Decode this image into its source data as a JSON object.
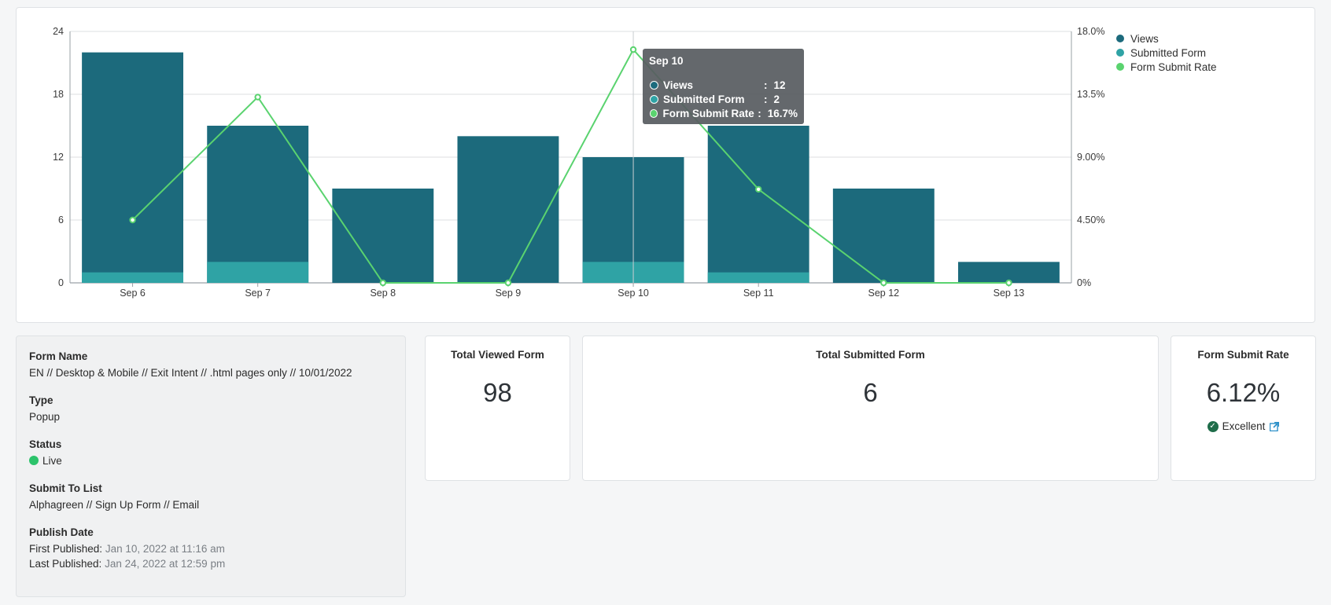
{
  "chart_data": {
    "type": "bar",
    "categories": [
      "Sep 6",
      "Sep 7",
      "Sep 8",
      "Sep 9",
      "Sep 10",
      "Sep 11",
      "Sep 12",
      "Sep 13"
    ],
    "series": [
      {
        "name": "Views",
        "axis": "left",
        "type": "bar",
        "color": "#1c6a7c",
        "values": [
          22,
          15,
          9,
          14,
          12,
          15,
          9,
          2
        ]
      },
      {
        "name": "Submitted Form",
        "axis": "left",
        "type": "bar",
        "color": "#2fa3a5",
        "values": [
          1,
          2,
          0,
          0,
          2,
          1,
          0,
          0
        ]
      },
      {
        "name": "Form Submit Rate",
        "axis": "right",
        "type": "line",
        "color": "#5ad36f",
        "values": [
          4.5,
          13.3,
          0,
          0,
          16.7,
          6.7,
          0,
          0
        ]
      }
    ],
    "ylim_left": [
      0,
      24
    ],
    "yticks_left": [
      "0",
      "6",
      "12",
      "18",
      "24"
    ],
    "ylim_right": [
      0,
      18
    ],
    "yticks_right": [
      "0%",
      "4.50%",
      "9.00%",
      "13.5%",
      "18.0%"
    ],
    "grid": true,
    "legend_position": "top-right",
    "tooltip": {
      "title": "Sep 10",
      "rows": [
        {
          "label": "Views",
          "value": "12",
          "color": "#1c6a7c"
        },
        {
          "label": "Submitted Form",
          "value": "2",
          "color": "#2fa3a5"
        },
        {
          "label": "Form Submit Rate",
          "value": "16.7%",
          "color": "#5ad36f"
        }
      ]
    }
  },
  "info": {
    "form_name_label": "Form Name",
    "form_name": "EN // Desktop & Mobile // Exit Intent // .html pages only // 10/01/2022",
    "type_label": "Type",
    "type": "Popup",
    "status_label": "Status",
    "status": "Live",
    "status_color": "#2cc36b",
    "list_label": "Submit To List",
    "list": "Alphagreen // Sign Up Form // Email",
    "publish_label": "Publish Date",
    "first_label": "First Published:",
    "first_value": "Jan 10, 2022 at 11:16 am",
    "last_label": "Last Published:",
    "last_value": "Jan 24, 2022 at 12:59 pm"
  },
  "stats": {
    "viewed_title": "Total Viewed Form",
    "viewed_value": "98",
    "submitted_title": "Total Submitted Form",
    "submitted_value": "6",
    "rate_title": "Form Submit Rate",
    "rate_value": "6.12%",
    "rating": "Excellent",
    "rating_icon": "check-circle-icon",
    "link_icon": "external-link-icon"
  }
}
